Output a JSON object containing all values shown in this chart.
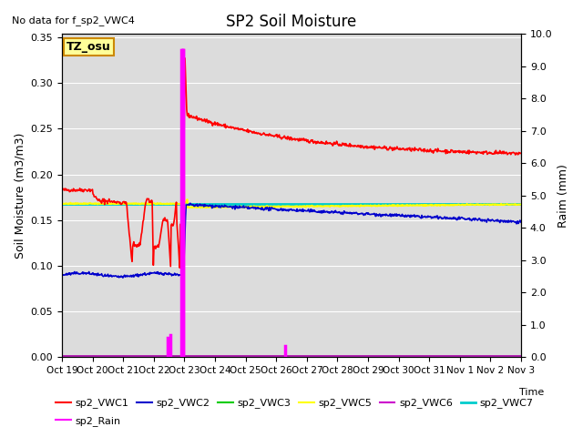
{
  "title": "SP2 Soil Moisture",
  "no_data_label": "No data for f_sp2_VWC4",
  "tz_label": "TZ_osu",
  "xlabel": "Time",
  "ylabel_left": "Soil Moisture (m3/m3)",
  "ylabel_right": "Raim (mm)",
  "ylim_left": [
    0.0,
    0.3536
  ],
  "ylim_right": [
    0.0,
    10.0
  ],
  "yticks_left": [
    0.0,
    0.05,
    0.1,
    0.15,
    0.2,
    0.25,
    0.3,
    0.35
  ],
  "yticks_right": [
    0.0,
    1.0,
    2.0,
    3.0,
    4.0,
    5.0,
    6.0,
    7.0,
    8.0,
    9.0,
    10.0
  ],
  "xtick_labels": [
    "Oct 19",
    "Oct 20",
    "Oct 21",
    "Oct 22",
    "Oct 23",
    "Oct 24",
    "Oct 25",
    "Oct 26",
    "Oct 27",
    "Oct 28",
    "Oct 29",
    "Oct 30",
    "Oct 31",
    "Nov 1",
    "Nov 2",
    "Nov 3"
  ],
  "bg_color": "#dcdcdc",
  "vwc1_color": "#ff0000",
  "vwc2_color": "#0000cc",
  "vwc3_color": "#00cc00",
  "vwc5_color": "#ffff00",
  "vwc6_color": "#cc00cc",
  "vwc7_color": "#00cccc",
  "rain_color": "#ff00ff"
}
